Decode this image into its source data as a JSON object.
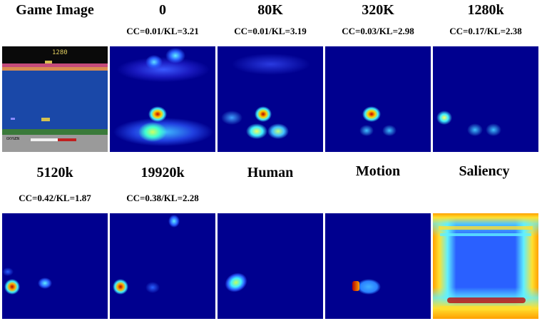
{
  "row1": [
    {
      "title": "Game Image",
      "metric": ""
    },
    {
      "title": "0",
      "metric": "CC=0.01/KL=3.21"
    },
    {
      "title": "80K",
      "metric": "CC=0.01/KL=3.19"
    },
    {
      "title": "320K",
      "metric": "CC=0.03/KL=2.98"
    },
    {
      "title": "1280k",
      "metric": "CC=0.17/KL=2.38"
    }
  ],
  "row2": [
    {
      "title": "5120k",
      "metric": "CC=0.42/KL=1.87"
    },
    {
      "title": "19920k",
      "metric": "CC=0.38/KL=2.28"
    },
    {
      "title": "Human",
      "metric": ""
    },
    {
      "title": "Motion",
      "metric": ""
    },
    {
      "title": "Saliency",
      "metric": ""
    }
  ],
  "game": {
    "score": "1280",
    "oxygen": "OXYGEN"
  }
}
